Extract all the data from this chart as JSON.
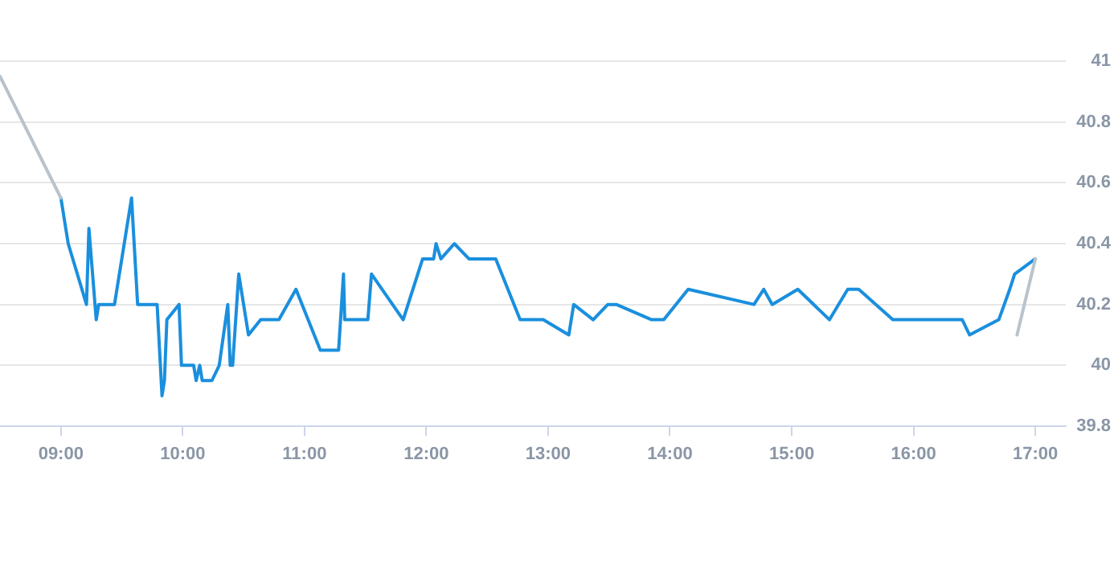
{
  "chart_data": {
    "type": "line",
    "xlim": [
      8.5,
      17.25
    ],
    "xticks": [
      {
        "value": 9,
        "label": "09:00"
      },
      {
        "value": 10,
        "label": "10:00"
      },
      {
        "value": 11,
        "label": "11:00"
      },
      {
        "value": 12,
        "label": "12:00"
      },
      {
        "value": 13,
        "label": "13:00"
      },
      {
        "value": 14,
        "label": "14:00"
      },
      {
        "value": 15,
        "label": "15:00"
      },
      {
        "value": 16,
        "label": "16:00"
      },
      {
        "value": 17,
        "label": "17:00"
      }
    ],
    "ylim": [
      39.8,
      41
    ],
    "yticks": [
      39.8,
      40,
      40.2,
      40.4,
      40.6,
      40.8,
      41
    ],
    "grid": "y",
    "marker": "none",
    "line_style": "solid",
    "series": [
      {
        "color": "#b9c3cc",
        "x": [
          8.5,
          9.0
        ],
        "values": [
          40.95,
          40.55
        ]
      },
      {
        "color": "#b9c3cc",
        "x": [
          16.85,
          17.0
        ],
        "values": [
          40.1,
          40.35
        ]
      },
      {
        "color": "#1a8fdd",
        "x": [
          9.0,
          9.06,
          9.21,
          9.23,
          9.29,
          9.31,
          9.44,
          9.58,
          9.63,
          9.79,
          9.83,
          9.85,
          9.87,
          9.97,
          9.99,
          10.09,
          10.11,
          10.14,
          10.16,
          10.24,
          10.3,
          10.37,
          10.39,
          10.41,
          10.46,
          10.54,
          10.64,
          10.79,
          10.93,
          11.13,
          11.28,
          11.32,
          11.33,
          11.52,
          11.55,
          11.81,
          11.97,
          12.06,
          12.08,
          12.12,
          12.23,
          12.35,
          12.57,
          12.77,
          12.96,
          13.17,
          13.21,
          13.37,
          13.49,
          13.56,
          13.85,
          13.95,
          14.15,
          14.69,
          14.77,
          14.84,
          15.05,
          15.31,
          15.46,
          15.55,
          15.83,
          16.4,
          16.46,
          16.7,
          16.79,
          16.83,
          17.0
        ],
        "values": [
          40.55,
          40.4,
          40.2,
          40.45,
          40.15,
          40.2,
          40.2,
          40.55,
          40.2,
          40.2,
          39.9,
          39.95,
          40.15,
          40.2,
          40.0,
          40.0,
          39.95,
          40.0,
          39.95,
          39.95,
          40.0,
          40.2,
          40.0,
          40.0,
          40.3,
          40.1,
          40.15,
          40.15,
          40.25,
          40.05,
          40.05,
          40.3,
          40.15,
          40.15,
          40.3,
          40.15,
          40.35,
          40.35,
          40.4,
          40.35,
          40.4,
          40.35,
          40.35,
          40.15,
          40.15,
          40.1,
          40.2,
          40.15,
          40.2,
          40.2,
          40.15,
          40.15,
          40.25,
          40.2,
          40.25,
          40.2,
          40.25,
          40.15,
          40.25,
          40.25,
          40.15,
          40.15,
          40.1,
          40.15,
          40.25,
          40.3,
          40.35
        ]
      }
    ]
  }
}
